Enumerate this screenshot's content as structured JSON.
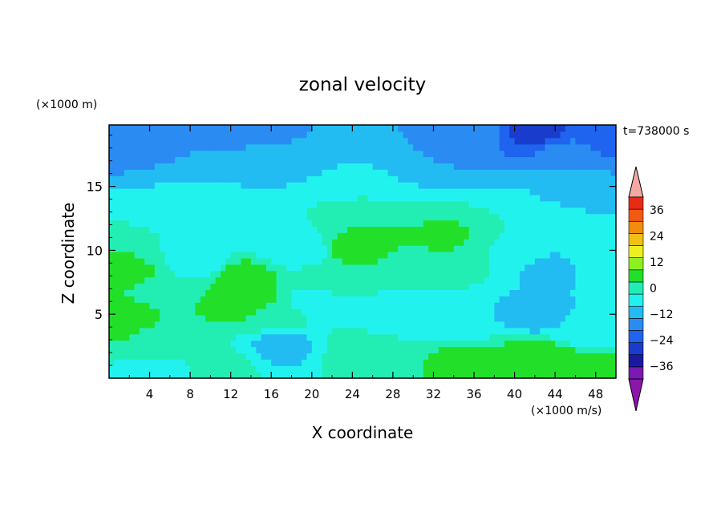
{
  "chart_data": {
    "type": "heatmap",
    "title": "zonal velocity",
    "xlabel": "X coordinate",
    "ylabel": "Z coordinate",
    "y_unit_label": "(×1000 m)",
    "colorbar_unit_label": "(×1000 m/s)",
    "time_label": "t=738000 s",
    "xlim": [
      0,
      50
    ],
    "ylim": [
      0,
      19.8
    ],
    "x_ticks": [
      4,
      8,
      12,
      16,
      20,
      24,
      28,
      32,
      36,
      40,
      44,
      48
    ],
    "y_ticks": [
      5,
      10,
      15
    ],
    "colorbar": {
      "levels": [
        -42,
        -36,
        -30,
        -24,
        -18,
        -12,
        -6,
        0,
        6,
        12,
        18,
        24,
        30,
        36,
        42
      ],
      "colors": [
        "#7a1ab0",
        "#1a1aa0",
        "#1a3ccc",
        "#1e64ee",
        "#2a8cf2",
        "#22bcf2",
        "#22f2ee",
        "#22eeb4",
        "#22e02a",
        "#8ef020",
        "#ecf020",
        "#f0c014",
        "#f08c10",
        "#f05a12",
        "#e82a14"
      ],
      "under_color": "#8e14ac",
      "over_color": "#f4a8a4",
      "tick_labels": [
        {
          "value": 36,
          "label": "36"
        },
        {
          "value": 24,
          "label": "24"
        },
        {
          "value": 12,
          "label": "12"
        },
        {
          "value": 0,
          "label": "0"
        },
        {
          "value": -12,
          "label": "−12"
        },
        {
          "value": -24,
          "label": "−24"
        },
        {
          "value": -36,
          "label": "−36"
        }
      ]
    },
    "field_points": [
      {
        "x": 1,
        "z": 5,
        "u": 10
      },
      {
        "x": 2,
        "z": 8,
        "u": 8
      },
      {
        "x": 5,
        "z": 7,
        "u": 2
      },
      {
        "x": 6,
        "z": 3,
        "u": 4
      },
      {
        "x": 9,
        "z": 9,
        "u": -4
      },
      {
        "x": 13,
        "z": 8,
        "u": 10
      },
      {
        "x": 13.5,
        "z": 6,
        "u": 12
      },
      {
        "x": 16,
        "z": 5,
        "u": 4
      },
      {
        "x": 17,
        "z": 2.5,
        "u": -8
      },
      {
        "x": 15,
        "z": 11,
        "u": -2
      },
      {
        "x": 19,
        "z": 10,
        "u": -5
      },
      {
        "x": 20,
        "z": 6,
        "u": -2
      },
      {
        "x": 22,
        "z": 8,
        "u": 4
      },
      {
        "x": 24,
        "z": 10,
        "u": 8
      },
      {
        "x": 26,
        "z": 11,
        "u": 8
      },
      {
        "x": 30,
        "z": 9,
        "u": 4
      },
      {
        "x": 33,
        "z": 11,
        "u": 7
      },
      {
        "x": 36,
        "z": 9,
        "u": 2
      },
      {
        "x": 40,
        "z": 9,
        "u": -6
      },
      {
        "x": 44,
        "z": 8,
        "u": -8
      },
      {
        "x": 42,
        "z": 5,
        "u": -9
      },
      {
        "x": 47,
        "z": 4,
        "u": -5
      },
      {
        "x": 48,
        "z": 8,
        "u": -3
      },
      {
        "x": 28,
        "z": 5,
        "u": -3
      },
      {
        "x": 34,
        "z": 4,
        "u": -4
      },
      {
        "x": 25,
        "z": 2,
        "u": 4
      },
      {
        "x": 35,
        "z": 1.5,
        "u": 8
      },
      {
        "x": 42,
        "z": 1.5,
        "u": 12
      },
      {
        "x": 46,
        "z": 0.5,
        "u": 12
      },
      {
        "x": 11,
        "z": 1,
        "u": 2
      },
      {
        "x": 5,
        "z": 0.5,
        "u": -2
      },
      {
        "x": 10,
        "z": 12.5,
        "u": 0
      },
      {
        "x": 25,
        "z": 13,
        "u": 2
      },
      {
        "x": 40,
        "z": 12.5,
        "u": 0
      },
      {
        "x": 10,
        "z": 15,
        "u": -6
      },
      {
        "x": 25,
        "z": 15.5,
        "u": -5
      },
      {
        "x": 45,
        "z": 15,
        "u": -7
      },
      {
        "x": 15,
        "z": 17.5,
        "u": -10
      },
      {
        "x": 30,
        "z": 17.5,
        "u": -12
      },
      {
        "x": 45,
        "z": 17.5,
        "u": -16
      },
      {
        "x": 3,
        "z": 19,
        "u": -18
      },
      {
        "x": 14,
        "z": 19,
        "u": -15
      },
      {
        "x": 24,
        "z": 19,
        "u": -12
      },
      {
        "x": 36,
        "z": 19,
        "u": -16
      },
      {
        "x": 42,
        "z": 19.3,
        "u": -26
      },
      {
        "x": 49,
        "z": 19,
        "u": -20
      }
    ]
  }
}
